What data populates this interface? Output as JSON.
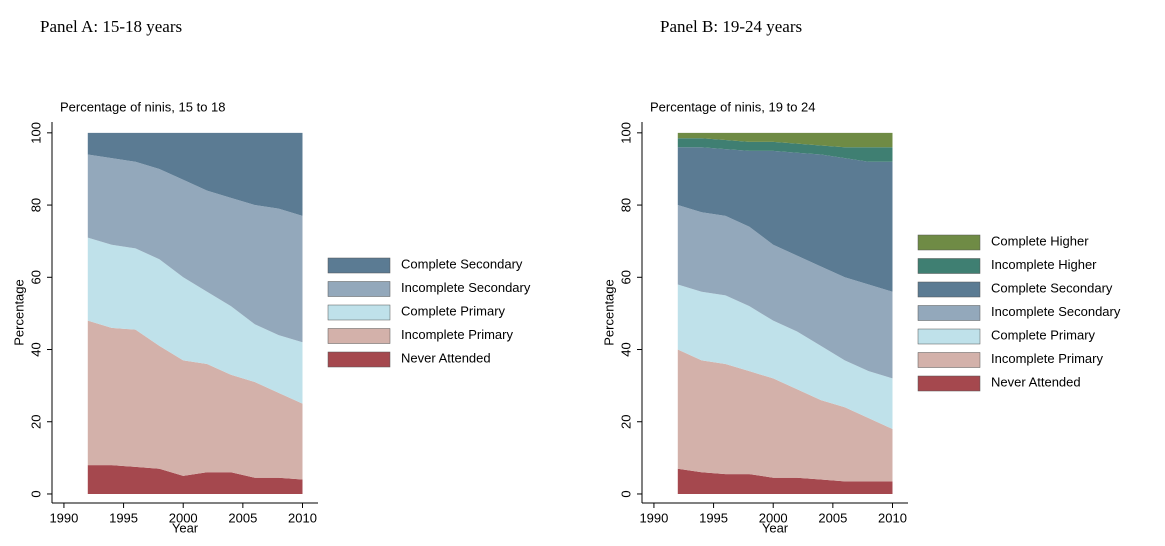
{
  "panel_labels": [
    "Panel A: 15-18 years",
    "Panel B: 19-24 years"
  ],
  "chart_data": [
    {
      "type": "area",
      "title": "Percentage of ninis, 15 to 18",
      "xlabel": "Year",
      "ylabel": "Percentage",
      "x": [
        1992,
        1994,
        1996,
        1998,
        2000,
        2002,
        2004,
        2006,
        2008,
        2010
      ],
      "xlim": [
        1989,
        2011.3
      ],
      "xticks": [
        1990,
        1995,
        2000,
        2005,
        2010
      ],
      "ylim": [
        -2.5,
        103
      ],
      "yticks": [
        0,
        20,
        40,
        60,
        80,
        100
      ],
      "stacked": true,
      "series": [
        {
          "name": "Never Attended",
          "color": "#a5484e",
          "values": [
            8,
            8,
            7.5,
            7,
            5,
            6,
            6,
            4.5,
            4.5,
            4
          ]
        },
        {
          "name": "Incomplete Primary",
          "color": "#d3b1aa",
          "values": [
            40,
            38,
            38,
            34,
            32,
            30,
            27,
            26.5,
            23.5,
            21
          ]
        },
        {
          "name": "Complete Primary",
          "color": "#bfe1ea",
          "values": [
            23,
            23,
            22.5,
            24,
            23,
            20,
            19,
            16,
            16,
            17
          ]
        },
        {
          "name": "Incomplete Secondary",
          "color": "#93a8bb",
          "values": [
            23,
            24,
            24,
            25,
            27,
            28,
            30,
            33,
            35,
            35
          ]
        },
        {
          "name": "Complete Secondary",
          "color": "#5b7b93",
          "values": [
            6,
            7,
            8,
            10,
            13,
            16,
            18,
            20,
            21,
            23
          ]
        }
      ]
    },
    {
      "type": "area",
      "title": "Percentage of ninis, 19 to 24",
      "xlabel": "Year",
      "ylabel": "Percentage",
      "x": [
        1992,
        1994,
        1996,
        1998,
        2000,
        2002,
        2004,
        2006,
        2008,
        2010
      ],
      "xlim": [
        1989,
        2011.3
      ],
      "xticks": [
        1990,
        1995,
        2000,
        2005,
        2010
      ],
      "ylim": [
        -2.5,
        103
      ],
      "yticks": [
        0,
        20,
        40,
        60,
        80,
        100
      ],
      "stacked": true,
      "series": [
        {
          "name": "Never Attended",
          "color": "#a5484e",
          "values": [
            7,
            6,
            5.5,
            5.5,
            4.5,
            4.5,
            4,
            3.5,
            3.5,
            3.5
          ]
        },
        {
          "name": "Incomplete Primary",
          "color": "#d3b1aa",
          "values": [
            33,
            31,
            30.5,
            28.5,
            27.5,
            24.5,
            22,
            20.5,
            17.5,
            14.5
          ]
        },
        {
          "name": "Complete Primary",
          "color": "#bfe1ea",
          "values": [
            18,
            19,
            19,
            18,
            16,
            16,
            15,
            13,
            13,
            14
          ]
        },
        {
          "name": "Incomplete Secondary",
          "color": "#93a8bb",
          "values": [
            22,
            22,
            22,
            22,
            21,
            21,
            22,
            23,
            24,
            24
          ]
        },
        {
          "name": "Complete Secondary",
          "color": "#5b7b93",
          "values": [
            16,
            18,
            18.5,
            21,
            26,
            28.5,
            31,
            33,
            34,
            36
          ]
        },
        {
          "name": "Incomplete Higher",
          "color": "#3f7f72",
          "values": [
            2.5,
            2.5,
            2.5,
            2.5,
            2.5,
            2.5,
            2.5,
            3,
            4,
            4
          ]
        },
        {
          "name": "Complete Higher",
          "color": "#6f8b45",
          "values": [
            1.5,
            1.5,
            2,
            2.5,
            2.5,
            3,
            3.5,
            4,
            4,
            4
          ]
        }
      ]
    }
  ]
}
